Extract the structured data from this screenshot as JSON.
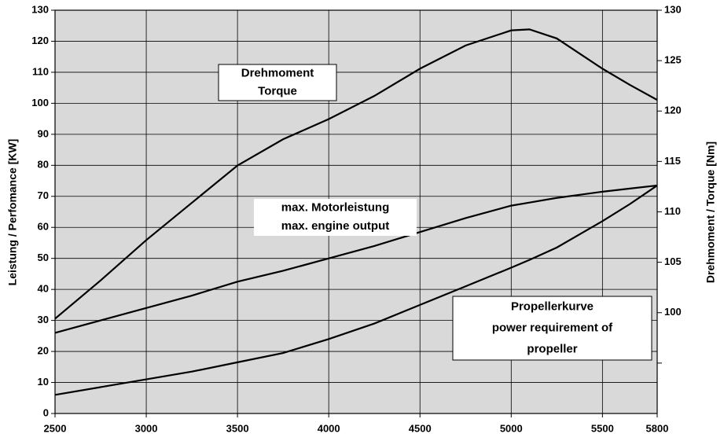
{
  "chart_data": {
    "type": "line",
    "x": [
      2500,
      2750,
      3000,
      3250,
      3500,
      3750,
      4000,
      4250,
      4500,
      4750,
      5000,
      5100,
      5250,
      5500,
      5650,
      5800
    ],
    "series": [
      {
        "color": "#000000",
        "axis": "y2",
        "values": [
          99.4,
          103.2,
          107.2,
          110.9,
          114.6,
          117.2,
          119.2,
          121.5,
          124.2,
          126.5,
          128.0,
          128.1,
          127.2,
          124.2,
          122.6,
          121.1
        ]
      },
      {
        "color": "#000000",
        "values": [
          26,
          30,
          34,
          38,
          42.5,
          46,
          50,
          54,
          58.5,
          63,
          67,
          68,
          69.5,
          71.5,
          72.5,
          73.5
        ]
      },
      {
        "color": "#000000",
        "values": [
          6,
          8.5,
          11,
          13.5,
          16.5,
          19.5,
          24,
          29,
          35,
          41,
          47,
          49.5,
          53.5,
          62,
          67.5,
          73.5
        ]
      }
    ],
    "xlim": [
      2500,
      5800
    ],
    "xticks": [
      2500,
      3000,
      3500,
      4000,
      4500,
      5000,
      5500,
      5800
    ],
    "ylim": [
      0,
      130
    ],
    "yticks": [
      0,
      10,
      20,
      30,
      40,
      50,
      60,
      70,
      80,
      90,
      100,
      110,
      120,
      130
    ],
    "y2lim": [
      90,
      130
    ],
    "y2ticks": [
      100,
      105,
      110,
      115,
      120,
      125,
      130
    ],
    "y2_minor_ticks": [
      95
    ],
    "ylabel": "Leistung / Perfomance [KW]",
    "y2label": "Drehmoment / Torque [Nm]",
    "grid": true,
    "annotations": [
      {
        "lines": [
          "Drehmoment",
          "Torque"
        ],
        "border": true
      },
      {
        "lines": [
          "max. Motorleistung",
          "max. engine output"
        ],
        "border": false
      },
      {
        "lines": [
          "Propellerkurve",
          "power requirement of",
          "propeller"
        ],
        "border": true
      }
    ]
  }
}
